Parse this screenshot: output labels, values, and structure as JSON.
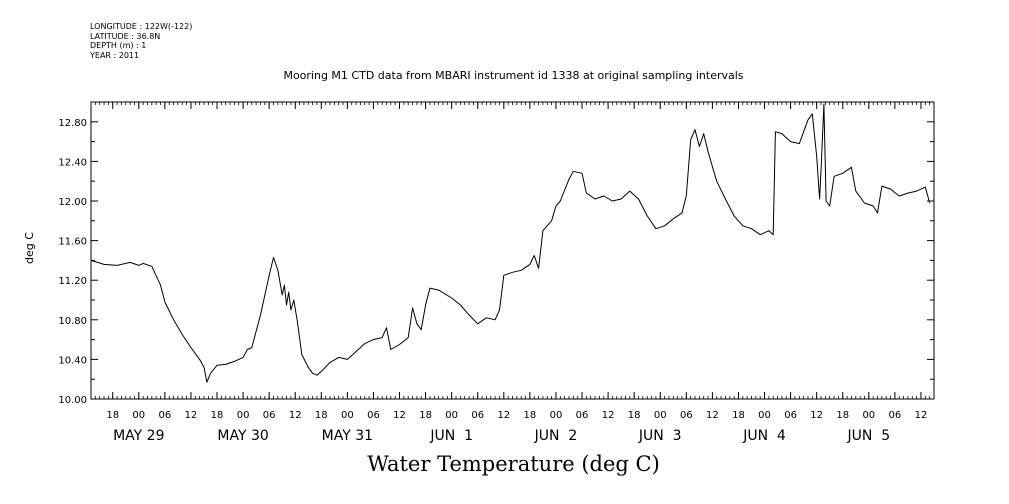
{
  "meta": {
    "longitude": "LONGITUDE : 122W(-122)",
    "latitude": "LATITUDE : 36.8N",
    "depth": "DEPTH (m) : 1",
    "year": "YEAR : 2011"
  },
  "colors": {
    "line": "#000000",
    "background": "#ffffff"
  },
  "chart_data": {
    "type": "line",
    "title": "Mooring M1 CTD data from MBARI instrument id 1338 at original sampling intervals",
    "xlabel": "Water Temperature (deg C)",
    "ylabel": "deg C",
    "ylim": [
      10.0,
      13.0
    ],
    "xlim": [
      "2011-05-28T13:00",
      "2011-06-05T15:00"
    ],
    "grid": false,
    "yticks": [
      10.0,
      10.4,
      10.8,
      11.2,
      11.6,
      12.0,
      12.4,
      12.8
    ],
    "ytick_labels": [
      "10.00",
      "10.40",
      "10.80",
      "11.20",
      "11.60",
      "12.00",
      "12.40",
      "12.80"
    ],
    "xticks": [
      {
        "t": "2011-05-28T18:00",
        "label": "18"
      },
      {
        "t": "2011-05-29T00:00",
        "label": "00"
      },
      {
        "t": "2011-05-29T06:00",
        "label": "06"
      },
      {
        "t": "2011-05-29T12:00",
        "label": "12"
      },
      {
        "t": "2011-05-29T18:00",
        "label": "18"
      },
      {
        "t": "2011-05-30T00:00",
        "label": "00"
      },
      {
        "t": "2011-05-30T06:00",
        "label": "06"
      },
      {
        "t": "2011-05-30T12:00",
        "label": "12"
      },
      {
        "t": "2011-05-30T18:00",
        "label": "18"
      },
      {
        "t": "2011-05-31T00:00",
        "label": "00"
      },
      {
        "t": "2011-05-31T06:00",
        "label": "06"
      },
      {
        "t": "2011-05-31T12:00",
        "label": "12"
      },
      {
        "t": "2011-05-31T18:00",
        "label": "18"
      },
      {
        "t": "2011-06-01T00:00",
        "label": "00"
      },
      {
        "t": "2011-06-01T06:00",
        "label": "06"
      },
      {
        "t": "2011-06-01T12:00",
        "label": "12"
      },
      {
        "t": "2011-06-01T18:00",
        "label": "18"
      },
      {
        "t": "2011-06-02T00:00",
        "label": "00"
      },
      {
        "t": "2011-06-02T06:00",
        "label": "06"
      },
      {
        "t": "2011-06-02T12:00",
        "label": "12"
      },
      {
        "t": "2011-06-02T18:00",
        "label": "18"
      },
      {
        "t": "2011-06-03T00:00",
        "label": "00"
      },
      {
        "t": "2011-06-03T06:00",
        "label": "06"
      },
      {
        "t": "2011-06-03T12:00",
        "label": "12"
      },
      {
        "t": "2011-06-03T18:00",
        "label": "18"
      },
      {
        "t": "2011-06-04T00:00",
        "label": "00"
      },
      {
        "t": "2011-06-04T06:00",
        "label": "06"
      },
      {
        "t": "2011-06-04T12:00",
        "label": "12"
      },
      {
        "t": "2011-06-04T18:00",
        "label": "18"
      },
      {
        "t": "2011-06-05T00:00",
        "label": "00"
      },
      {
        "t": "2011-06-05T06:00",
        "label": "06"
      },
      {
        "t": "2011-06-05T12:00",
        "label": "12"
      }
    ],
    "date_labels": [
      {
        "t": "2011-05-29T00:00",
        "label": "MAY 29"
      },
      {
        "t": "2011-05-30T00:00",
        "label": "MAY 30"
      },
      {
        "t": "2011-05-31T00:00",
        "label": "MAY 31"
      },
      {
        "t": "2011-06-01T00:00",
        "label": "JUN  1"
      },
      {
        "t": "2011-06-02T00:00",
        "label": "JUN  2"
      },
      {
        "t": "2011-06-03T00:00",
        "label": "JUN  3"
      },
      {
        "t": "2011-06-04T00:00",
        "label": "JUN  4"
      },
      {
        "t": "2011-06-05T00:00",
        "label": "JUN  5"
      }
    ],
    "series": [
      {
        "points": [
          [
            "2011-05-28T13:00",
            11.4
          ],
          [
            "2011-05-28T16:00",
            11.36
          ],
          [
            "2011-05-28T19:00",
            11.35
          ],
          [
            "2011-05-28T22:00",
            11.38
          ],
          [
            "2011-05-29T00:00",
            11.35
          ],
          [
            "2011-05-29T01:00",
            11.37
          ],
          [
            "2011-05-29T03:00",
            11.34
          ],
          [
            "2011-05-29T05:00",
            11.15
          ],
          [
            "2011-05-29T06:00",
            10.98
          ],
          [
            "2011-05-29T08:00",
            10.8
          ],
          [
            "2011-05-29T10:00",
            10.65
          ],
          [
            "2011-05-29T12:00",
            10.52
          ],
          [
            "2011-05-29T14:00",
            10.4
          ],
          [
            "2011-05-29T15:00",
            10.32
          ],
          [
            "2011-05-29T15:40",
            10.17
          ],
          [
            "2011-05-29T16:30",
            10.26
          ],
          [
            "2011-05-29T18:00",
            10.34
          ],
          [
            "2011-05-29T20:00",
            10.35
          ],
          [
            "2011-05-29T22:00",
            10.38
          ],
          [
            "2011-05-30T00:00",
            10.42
          ],
          [
            "2011-05-30T01:00",
            10.5
          ],
          [
            "2011-05-30T02:00",
            10.52
          ],
          [
            "2011-05-30T04:00",
            10.85
          ],
          [
            "2011-05-30T06:00",
            11.25
          ],
          [
            "2011-05-30T07:00",
            11.43
          ],
          [
            "2011-05-30T08:00",
            11.3
          ],
          [
            "2011-05-30T09:00",
            11.05
          ],
          [
            "2011-05-30T09:30",
            11.15
          ],
          [
            "2011-05-30T10:00",
            10.95
          ],
          [
            "2011-05-30T10:30",
            11.08
          ],
          [
            "2011-05-30T11:00",
            10.9
          ],
          [
            "2011-05-30T11:40",
            11.0
          ],
          [
            "2011-05-30T12:30",
            10.78
          ],
          [
            "2011-05-30T13:30",
            10.45
          ],
          [
            "2011-05-30T15:00",
            10.32
          ],
          [
            "2011-05-30T16:00",
            10.26
          ],
          [
            "2011-05-30T17:00",
            10.24
          ],
          [
            "2011-05-30T18:30",
            10.3
          ],
          [
            "2011-05-30T20:00",
            10.37
          ],
          [
            "2011-05-30T22:00",
            10.42
          ],
          [
            "2011-05-31T00:00",
            10.4
          ],
          [
            "2011-05-31T02:00",
            10.48
          ],
          [
            "2011-05-31T04:00",
            10.56
          ],
          [
            "2011-05-31T06:00",
            10.6
          ],
          [
            "2011-05-31T08:00",
            10.62
          ],
          [
            "2011-05-31T09:00",
            10.72
          ],
          [
            "2011-05-31T10:00",
            10.5
          ],
          [
            "2011-05-31T12:00",
            10.55
          ],
          [
            "2011-05-31T14:00",
            10.62
          ],
          [
            "2011-05-31T15:00",
            10.92
          ],
          [
            "2011-05-31T16:00",
            10.76
          ],
          [
            "2011-05-31T17:00",
            10.7
          ],
          [
            "2011-05-31T18:00",
            10.95
          ],
          [
            "2011-05-31T19:00",
            11.12
          ],
          [
            "2011-05-31T21:00",
            11.1
          ],
          [
            "2011-06-01T00:00",
            11.02
          ],
          [
            "2011-06-01T02:00",
            10.95
          ],
          [
            "2011-06-01T04:00",
            10.85
          ],
          [
            "2011-06-01T06:00",
            10.76
          ],
          [
            "2011-06-01T08:00",
            10.82
          ],
          [
            "2011-06-01T10:00",
            10.8
          ],
          [
            "2011-06-01T11:00",
            10.9
          ],
          [
            "2011-06-01T12:00",
            11.25
          ],
          [
            "2011-06-01T14:00",
            11.28
          ],
          [
            "2011-06-01T16:00",
            11.3
          ],
          [
            "2011-06-01T18:00",
            11.36
          ],
          [
            "2011-06-01T19:00",
            11.45
          ],
          [
            "2011-06-01T20:00",
            11.32
          ],
          [
            "2011-06-01T21:00",
            11.7
          ],
          [
            "2011-06-01T23:00",
            11.8
          ],
          [
            "2011-06-02T00:00",
            11.95
          ],
          [
            "2011-06-02T01:00",
            12.0
          ],
          [
            "2011-06-02T03:00",
            12.22
          ],
          [
            "2011-06-02T04:00",
            12.3
          ],
          [
            "2011-06-02T06:00",
            12.28
          ],
          [
            "2011-06-02T07:00",
            12.08
          ],
          [
            "2011-06-02T09:00",
            12.02
          ],
          [
            "2011-06-02T11:00",
            12.05
          ],
          [
            "2011-06-02T13:00",
            12.0
          ],
          [
            "2011-06-02T15:00",
            12.02
          ],
          [
            "2011-06-02T17:00",
            12.1
          ],
          [
            "2011-06-02T19:00",
            12.02
          ],
          [
            "2011-06-02T21:00",
            11.85
          ],
          [
            "2011-06-02T23:00",
            11.72
          ],
          [
            "2011-06-03T01:00",
            11.75
          ],
          [
            "2011-06-03T03:00",
            11.82
          ],
          [
            "2011-06-03T05:00",
            11.88
          ],
          [
            "2011-06-03T06:00",
            12.05
          ],
          [
            "2011-06-03T07:00",
            12.62
          ],
          [
            "2011-06-03T08:00",
            12.72
          ],
          [
            "2011-06-03T09:00",
            12.55
          ],
          [
            "2011-06-03T10:00",
            12.68
          ],
          [
            "2011-06-03T11:00",
            12.5
          ],
          [
            "2011-06-03T13:00",
            12.2
          ],
          [
            "2011-06-03T15:00",
            12.02
          ],
          [
            "2011-06-03T17:00",
            11.85
          ],
          [
            "2011-06-03T19:00",
            11.75
          ],
          [
            "2011-06-03T21:00",
            11.72
          ],
          [
            "2011-06-03T23:00",
            11.66
          ],
          [
            "2011-06-04T01:00",
            11.7
          ],
          [
            "2011-06-04T02:00",
            11.66
          ],
          [
            "2011-06-04T02:30",
            12.7
          ],
          [
            "2011-06-04T04:00",
            12.68
          ],
          [
            "2011-06-04T06:00",
            12.6
          ],
          [
            "2011-06-04T08:00",
            12.58
          ],
          [
            "2011-06-04T10:00",
            12.82
          ],
          [
            "2011-06-04T11:00",
            12.88
          ],
          [
            "2011-06-04T12:00",
            12.45
          ],
          [
            "2011-06-04T12:40",
            12.02
          ],
          [
            "2011-06-04T13:00",
            12.3
          ],
          [
            "2011-06-04T13:40",
            12.98
          ],
          [
            "2011-06-04T14:10",
            12.0
          ],
          [
            "2011-06-04T15:00",
            11.95
          ],
          [
            "2011-06-04T16:00",
            12.25
          ],
          [
            "2011-06-04T18:00",
            12.28
          ],
          [
            "2011-06-04T20:00",
            12.34
          ],
          [
            "2011-06-04T21:00",
            12.1
          ],
          [
            "2011-06-04T23:00",
            11.98
          ],
          [
            "2011-06-05T01:00",
            11.95
          ],
          [
            "2011-06-05T02:00",
            11.88
          ],
          [
            "2011-06-05T03:00",
            12.15
          ],
          [
            "2011-06-05T05:00",
            12.12
          ],
          [
            "2011-06-05T07:00",
            12.05
          ],
          [
            "2011-06-05T09:00",
            12.08
          ],
          [
            "2011-06-05T11:00",
            12.1
          ],
          [
            "2011-06-05T13:00",
            12.14
          ],
          [
            "2011-06-05T14:00",
            11.98
          ]
        ]
      }
    ]
  }
}
